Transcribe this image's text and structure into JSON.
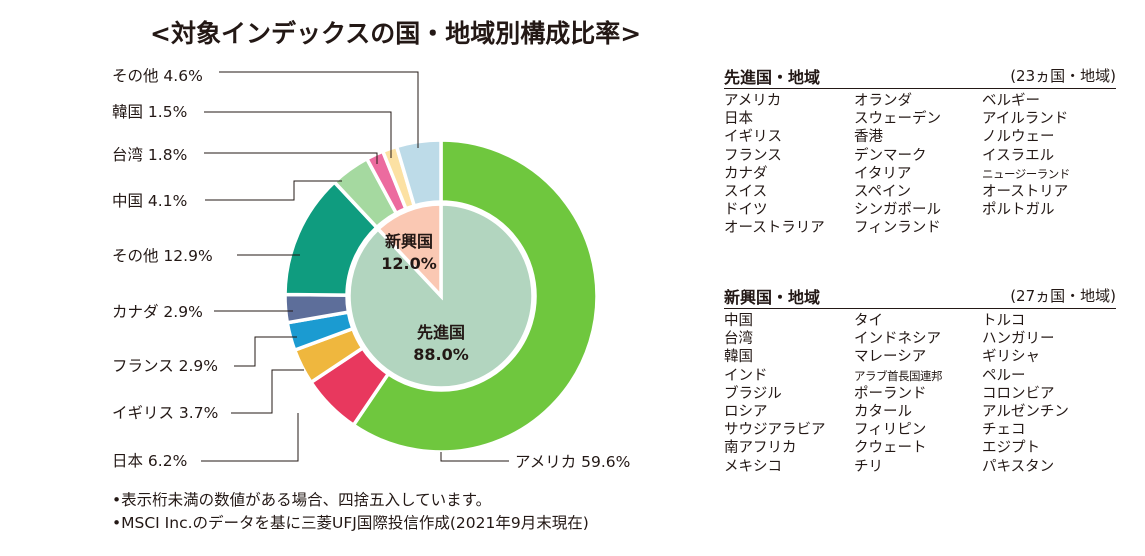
{
  "chart_data": {
    "type": "pie",
    "title": "<対象インデックスの国・地域別構成比率>",
    "outer_ring": [
      {
        "label": "アメリカ",
        "value": 59.6,
        "display": "アメリカ 59.6%",
        "color": "#6fc73e"
      },
      {
        "label": "日本",
        "value": 6.2,
        "display": "日本 6.2%",
        "color": "#e8385e"
      },
      {
        "label": "イギリス",
        "value": 3.7,
        "display": "イギリス 3.7%",
        "color": "#efb73e"
      },
      {
        "label": "フランス",
        "value": 2.9,
        "display": "フランス 2.9%",
        "color": "#1b9bd1"
      },
      {
        "label": "カナダ",
        "value": 2.9,
        "display": "カナダ 2.9%",
        "color": "#5d6e9a"
      },
      {
        "label": "その他",
        "value": 12.9,
        "display": "その他 12.9%",
        "color": "#0f9c7f"
      },
      {
        "label": "中国",
        "value": 4.1,
        "display": "中国 4.1%",
        "color": "#a5d9a0"
      },
      {
        "label": "台湾",
        "value": 1.8,
        "display": "台湾 1.8%",
        "color": "#ec6b9f"
      },
      {
        "label": "韓国",
        "value": 1.5,
        "display": "韓国 1.5%",
        "color": "#fce1a3"
      },
      {
        "label": "その他",
        "value": 4.6,
        "display": "その他 4.6%",
        "color": "#bddbe8"
      }
    ],
    "inner_ring": [
      {
        "label": "先進国",
        "value": 88.0,
        "display": "88.0%",
        "color": "#b2d5bf"
      },
      {
        "label": "新興国",
        "value": 12.0,
        "display": "12.0%",
        "color": "#fac8b3"
      }
    ]
  },
  "developed": {
    "title": "先進国・地域",
    "count": "(23ヵ国・地域)",
    "columns": [
      [
        "アメリカ",
        "日本",
        "イギリス",
        "フランス",
        "カナダ",
        "スイス",
        "ドイツ",
        "オーストラリア"
      ],
      [
        "オランダ",
        "スウェーデン",
        "香港",
        "デンマーク",
        "イタリア",
        "スペイン",
        "シンガポール",
        "フィンランド"
      ],
      [
        "ベルギー",
        "アイルランド",
        "ノルウェー",
        "イスラエル",
        "ニュージーランド",
        "オーストリア",
        "ポルトガル"
      ]
    ]
  },
  "emerging": {
    "title": "新興国・地域",
    "count": "(27ヵ国・地域)",
    "columns": [
      [
        "中国",
        "台湾",
        "韓国",
        "インド",
        "ブラジル",
        "ロシア",
        "サウジアラビア",
        "南アフリカ",
        "メキシコ"
      ],
      [
        "タイ",
        "インドネシア",
        "マレーシア",
        "アラブ首長国連邦",
        "ポーランド",
        "カタール",
        "フィリピン",
        "クウェート",
        "チリ"
      ],
      [
        "トルコ",
        "ハンガリー",
        "ギリシャ",
        "ペルー",
        "コロンビア",
        "アルゼンチン",
        "チェコ",
        "エジプト",
        "パキスタン"
      ]
    ]
  },
  "notes": [
    "•表示桁未満の数値がある場合、四捨五入しています。",
    "•MSCI Inc.のデータを基に三菱UFJ国際投信作成(2021年9月末現在)"
  ]
}
